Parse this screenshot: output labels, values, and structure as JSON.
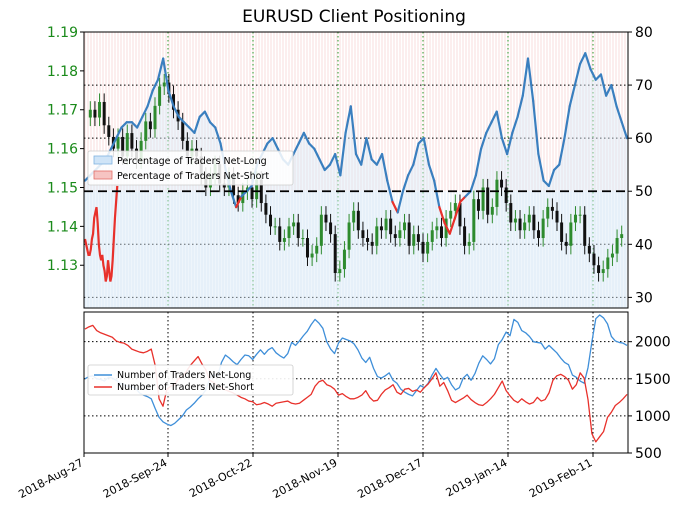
{
  "chart_data": [
    {
      "type": "candlestick+line",
      "title": "EURUSD Client Positioning",
      "price_axis_ticks": [
        "1.19",
        "1.18",
        "1.17",
        "1.16",
        "1.15",
        "1.14",
        "1.13"
      ],
      "price_axis_range": [
        1.119,
        1.19
      ],
      "pct_axis_ticks": [
        "80",
        "70",
        "60",
        "50",
        "40",
        "30"
      ],
      "pct_axis_range": [
        28,
        80
      ],
      "threshold_pct": 50,
      "x_tick_labels": [
        "2018-Aug-27",
        "2018-Sep-24",
        "2018-Oct-22",
        "2018-Nov-19",
        "2018-Dec-17",
        "2019-Jan-14",
        "2019-Feb-11"
      ],
      "legend": [
        "Percentage of Traders Net-Long",
        "Percentage of Traders Net-Short"
      ],
      "close_prices": [
        1.17,
        1.168,
        1.172,
        1.166,
        1.163,
        1.16,
        1.163,
        1.158,
        1.164,
        1.16,
        1.157,
        1.162,
        1.167,
        1.165,
        1.171,
        1.176,
        1.177,
        1.174,
        1.17,
        1.167,
        1.162,
        1.158,
        1.16,
        1.158,
        1.153,
        1.15,
        1.153,
        1.156,
        1.151,
        1.15,
        1.153,
        1.148,
        1.146,
        1.149,
        1.15,
        1.147,
        1.152,
        1.146,
        1.143,
        1.14,
        1.14,
        1.136,
        1.137,
        1.14,
        1.141,
        1.137,
        1.137,
        1.132,
        1.133,
        1.135,
        1.143,
        1.141,
        1.138,
        1.128,
        1.129,
        1.134,
        1.141,
        1.144,
        1.139,
        1.137,
        1.136,
        1.135,
        1.14,
        1.139,
        1.142,
        1.138,
        1.137,
        1.139,
        1.141,
        1.135,
        1.138,
        1.136,
        1.133,
        1.136,
        1.139,
        1.14,
        1.137,
        1.142,
        1.144,
        1.146,
        1.14,
        1.135,
        1.136,
        1.147,
        1.144,
        1.15,
        1.143,
        1.145,
        1.152,
        1.15,
        1.146,
        1.141,
        1.142,
        1.139,
        1.141,
        1.143,
        1.139,
        1.137,
        1.142,
        1.145,
        1.144,
        1.141,
        1.136,
        1.135,
        1.141,
        1.143,
        1.143,
        1.135,
        1.133,
        1.13,
        1.128,
        1.129,
        1.132,
        1.133,
        1.137,
        1.138
      ],
      "pct_net_long": [
        null,
        null,
        null,
        null,
        null,
        null,
        null,
        null,
        null,
        null,
        null,
        null,
        null,
        null,
        null,
        null,
        null,
        null,
        null,
        null,
        null,
        null,
        null,
        null,
        null,
        null,
        null,
        null,
        null,
        null,
        null,
        null,
        52,
        53,
        54,
        55,
        56,
        58,
        60,
        62,
        63,
        63,
        62,
        64,
        66,
        69,
        71,
        75,
        69,
        66,
        64,
        63,
        62,
        61,
        64,
        65,
        63,
        62,
        59,
        54,
        50,
        47,
        49,
        50,
        51,
        55,
        57,
        59,
        60,
        58,
        56,
        55,
        57,
        59,
        61,
        59,
        58,
        56,
        54,
        55,
        57,
        53,
        61,
        66,
        57,
        55,
        60,
        56,
        55,
        57,
        52,
        48,
        46,
        50,
        53,
        55,
        59,
        60,
        55,
        52,
        47,
        44,
        42,
        45,
        48,
        49,
        50,
        53,
        58,
        61,
        63,
        65,
        60,
        57,
        61,
        64,
        68,
        75,
        67,
        57,
        52,
        51,
        54,
        55,
        60,
        66,
        70,
        74,
        76,
        73,
        71,
        72,
        68,
        70,
        66,
        63,
        60
      ],
      "pct_net_short_series": "100 - pct_net_long (red where net-short exceeds 50%)"
    },
    {
      "type": "line",
      "yaxis_ticks": [
        "2000",
        "1500",
        "1000",
        "500"
      ],
      "yaxis_range": [
        500,
        2400
      ],
      "legend": [
        "Number of Traders Net-Long",
        "Number of Traders Net-Short"
      ],
      "series": [
        {
          "name": "Number of Traders Net-Long",
          "color": "#3f8fd9",
          "values": [
            1500,
            1530,
            1540,
            1500,
            1490,
            1470,
            1520,
            1510,
            1480,
            1440,
            1420,
            1400,
            1390,
            1370,
            1310,
            1280,
            1260,
            1230,
            1100,
            980,
            920,
            890,
            870,
            900,
            950,
            1000,
            1080,
            1120,
            1170,
            1230,
            1280,
            1350,
            1500,
            1560,
            1530,
            1720,
            1820,
            1780,
            1730,
            1690,
            1760,
            1820,
            1810,
            1760,
            1830,
            1890,
            1830,
            1890,
            1920,
            1850,
            1810,
            1780,
            1840,
            1990,
            1950,
            2010,
            2080,
            2140,
            2230,
            2300,
            2250,
            2180,
            2000,
            1900,
            1840,
            1980,
            2050,
            2030,
            2010,
            1970,
            1890,
            1780,
            1720,
            1790,
            1640,
            1530,
            1510,
            1540,
            1580,
            1480,
            1440,
            1360,
            1320,
            1290,
            1270,
            1340,
            1410,
            1380,
            1440,
            1550,
            1640,
            1560,
            1490,
            1520,
            1420,
            1350,
            1380,
            1510,
            1560,
            1480,
            1570,
            1710,
            1810,
            1760,
            1700,
            1770,
            1960,
            2030,
            2130,
            2080,
            2300,
            2260,
            2150,
            2120,
            2070,
            2000,
            1990,
            1980,
            1900,
            1950,
            1900,
            1850,
            1780,
            1720,
            1690,
            1550,
            1520,
            1470,
            1440,
            1650,
            2000,
            2310,
            2360,
            2320,
            2240,
            2070,
            2010,
            1990,
            1980,
            1950
          ]
        },
        {
          "name": "Number of Traders Net-Short",
          "color": "#e8312b",
          "values": [
            2170,
            2200,
            2220,
            2150,
            2120,
            2100,
            2080,
            2060,
            2010,
            1990,
            1980,
            1950,
            1900,
            1880,
            1860,
            1850,
            1870,
            1900,
            1680,
            1230,
            1130,
            1360,
            1400,
            1420,
            1500,
            1530,
            1600,
            1680,
            1740,
            1800,
            1700,
            1620,
            1480,
            1450,
            1400,
            1380,
            1350,
            1330,
            1310,
            1280,
            1250,
            1230,
            1200,
            1190,
            1150,
            1160,
            1180,
            1160,
            1130,
            1170,
            1180,
            1190,
            1200,
            1170,
            1160,
            1170,
            1210,
            1250,
            1290,
            1400,
            1460,
            1480,
            1420,
            1400,
            1360,
            1280,
            1300,
            1260,
            1230,
            1230,
            1250,
            1280,
            1340,
            1250,
            1200,
            1210,
            1290,
            1350,
            1380,
            1420,
            1320,
            1290,
            1360,
            1370,
            1330,
            1350,
            1320,
            1380,
            1430,
            1500,
            1580,
            1400,
            1450,
            1340,
            1210,
            1180,
            1210,
            1240,
            1280,
            1220,
            1180,
            1150,
            1140,
            1180,
            1230,
            1290,
            1380,
            1470,
            1340,
            1270,
            1210,
            1180,
            1230,
            1190,
            1160,
            1180,
            1250,
            1200,
            1220,
            1310,
            1480,
            1540,
            1560,
            1530,
            1480,
            1360,
            1420,
            1580,
            1510,
            1220,
            760,
            650,
            720,
            790,
            980,
            1050,
            1140,
            1180,
            1230,
            1290
          ]
        }
      ]
    }
  ]
}
